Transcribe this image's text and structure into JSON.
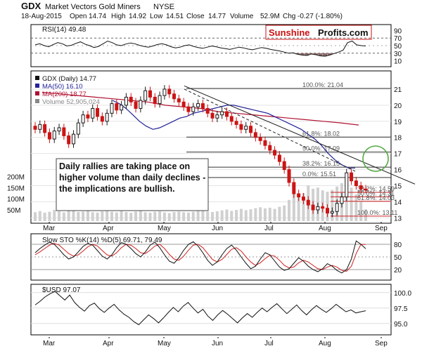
{
  "header": {
    "symbol": "GDX",
    "name": "Market Vectors Gold Miners",
    "exchange": "NYSE",
    "date": "18-Aug-2015",
    "open_label": "Open",
    "open": "14.74",
    "high_label": "High",
    "high": "14.92",
    "low_label": "Low",
    "low": "14.51",
    "close_label": "Close",
    "close": "14.77",
    "volume_label": "Volume",
    "volume": "52.9M",
    "chg_label": "Chg",
    "chg": "-0.27 (-1.80%)"
  },
  "brand": {
    "part1": "Sunshine",
    "part2": "Profits.com"
  },
  "colors": {
    "up": "#1a1a1a",
    "down": "#cc1414",
    "ma50": "#22229a",
    "ma200": "#b01030",
    "volume": "#d0d0d0",
    "rsi_fill": "#8b6a6a",
    "sto_k": "#111111",
    "sto_d": "#d02020",
    "circle": "#55aa44",
    "brand_red": "#cc1010",
    "fib": "#333333",
    "resistance": "#d02020"
  },
  "chart_data": [
    {
      "panel": "rsi",
      "type": "line",
      "title": "RSI(14) 49.48",
      "y_ticks": [
        "90",
        "70",
        "50",
        "30",
        "10"
      ],
      "ylim": [
        0,
        100
      ],
      "reference_lines": [
        70,
        30
      ],
      "values": [
        52,
        55,
        50,
        47,
        53,
        58,
        55,
        49,
        51,
        56,
        60,
        54,
        50,
        45,
        48,
        55,
        62,
        58,
        52,
        50,
        54,
        57,
        55,
        51,
        48,
        46,
        49,
        53,
        55,
        52,
        47,
        44,
        46,
        50,
        52,
        48,
        45,
        43,
        46,
        49,
        47,
        44,
        42,
        40,
        43,
        46,
        44,
        41,
        39,
        42,
        45,
        43,
        40,
        38,
        36,
        33,
        30,
        31,
        27,
        25,
        24,
        28,
        26,
        23,
        22,
        25,
        29,
        33,
        38,
        58,
        62,
        52,
        50,
        49
      ]
    },
    {
      "panel": "price",
      "type": "candlestick",
      "legend": [
        "GDX (Daily) 14.77",
        "MA(50) 16.10",
        "MA(200) 18.77",
        "Volume 52,905,024"
      ],
      "y_ticks": [
        "21",
        "20",
        "19",
        "18",
        "17",
        "16",
        "15",
        "14",
        "13"
      ],
      "ylim": [
        12.8,
        22.0
      ],
      "x_labels": [
        "Mar",
        "Apr",
        "May",
        "Jun",
        "Jul",
        "Aug",
        "Sep"
      ],
      "closes": [
        18.5,
        18.8,
        18.3,
        17.9,
        18.4,
        18.6,
        18.1,
        17.6,
        18.2,
        18.9,
        19.4,
        19.2,
        19.8,
        19.3,
        19.0,
        19.5,
        20.1,
        19.7,
        20.0,
        20.5,
        20.2,
        19.8,
        20.3,
        20.9,
        20.5,
        20.1,
        20.6,
        21.0,
        20.7,
        20.4,
        20.2,
        19.9,
        19.6,
        19.9,
        20.1,
        19.8,
        19.5,
        19.2,
        19.4,
        19.6,
        19.3,
        19.0,
        18.8,
        18.5,
        18.7,
        18.3,
        18.0,
        17.8,
        17.5,
        17.2,
        16.9,
        16.5,
        16.0,
        15.2,
        14.5,
        14.3,
        14.1,
        13.8,
        13.5,
        13.7,
        13.6,
        13.3,
        13.4,
        13.9,
        14.3,
        15.8,
        15.3,
        15.0,
        14.8,
        14.77
      ],
      "ma50": [
        20.3,
        20.1,
        19.8,
        19.4,
        19.0,
        18.7,
        18.5,
        18.6,
        18.8,
        19.0,
        19.2,
        19.3,
        19.5,
        19.6,
        19.7,
        19.8,
        19.9,
        20.0,
        20.0,
        19.9,
        19.8,
        19.7,
        19.6,
        19.5,
        19.3,
        19.1,
        18.9,
        18.7,
        18.5,
        18.2,
        17.9,
        17.5,
        17.0,
        16.6,
        16.3,
        16.1,
        16.1
      ],
      "ma200": [
        20.8,
        20.7,
        20.6,
        20.5,
        20.4,
        20.3,
        20.2,
        20.0,
        19.9,
        19.8,
        19.6,
        19.5,
        19.4,
        19.3,
        19.2,
        19.1,
        19.0,
        18.9,
        18.77
      ],
      "fib_levels": [
        {
          "label": "100.0%: 21.04",
          "value": 21.04
        },
        {
          "label": "61.8%: 18.02",
          "value": 18.02
        },
        {
          "label": "50.0%: 17.09",
          "value": 17.09
        },
        {
          "label": "38.2%: 16.15",
          "value": 16.15
        },
        {
          "label": "0.0%: 15.51",
          "value": 15.51
        },
        {
          "label": "38.2%: 14.59",
          "value": 14.59
        },
        {
          "label": "50.0%: 14.31",
          "value": 14.31
        },
        {
          "label": "61.8%: 14.03",
          "value": 14.03
        },
        {
          "label": "100.0%: 13.11",
          "value": 13.11
        }
      ],
      "volume_ticks": [
        "200M",
        "150M",
        "100M",
        "50M"
      ],
      "volume_max": 220,
      "volume_millions": [
        40,
        45,
        38,
        42,
        50,
        44,
        39,
        47,
        52,
        41,
        43,
        46,
        40,
        38,
        44,
        48,
        42,
        39,
        45,
        41,
        37,
        43,
        46,
        40,
        38,
        42,
        44,
        39,
        36,
        41,
        43,
        40,
        38,
        42,
        45,
        47,
        43,
        41,
        44,
        48,
        52,
        46,
        50,
        55,
        49,
        53,
        58,
        62,
        57,
        60,
        55,
        64,
        70,
        95,
        130,
        110,
        125,
        160,
        145,
        150,
        138,
        132,
        140,
        155,
        170,
        165,
        150,
        120,
        90,
        52.9
      ],
      "annotation": "Daily rallies are taking place on higher volume than daily declines - the implications are bullish."
    },
    {
      "panel": "stochastic",
      "type": "line",
      "title": "Slow STO %K(14) %D(5) 69.71, 79.49",
      "y_ticks": [
        "80",
        "50",
        "20"
      ],
      "ylim": [
        0,
        100
      ],
      "series": [
        {
          "name": "%K",
          "values": [
            60,
            70,
            78,
            85,
            80,
            68,
            55,
            45,
            50,
            62,
            75,
            82,
            78,
            65,
            52,
            45,
            55,
            72,
            84,
            80,
            70,
            58,
            50,
            62,
            78,
            85,
            72,
            55,
            40,
            35,
            48,
            66,
            80,
            86,
            76,
            60,
            42,
            30,
            38,
            55,
            70,
            78,
            66,
            50,
            35,
            22,
            28,
            45,
            60,
            55,
            40,
            26,
            18,
            22,
            35,
            48,
            40,
            28,
            20,
            15,
            22,
            34,
            28,
            18,
            12,
            20,
            45,
            88,
            80,
            69.71
          ]
        },
        {
          "name": "%D",
          "values": [
            55,
            62,
            70,
            78,
            82,
            78,
            68,
            58,
            52,
            55,
            64,
            74,
            80,
            76,
            65,
            55,
            52,
            60,
            72,
            80,
            78,
            70,
            60,
            58,
            66,
            76,
            80,
            70,
            56,
            45,
            42,
            52,
            66,
            78,
            80,
            72,
            58,
            44,
            38,
            44,
            56,
            68,
            72,
            64,
            50,
            38,
            30,
            36,
            46,
            54,
            52,
            42,
            30,
            24,
            26,
            36,
            42,
            38,
            30,
            22,
            20,
            26,
            30,
            26,
            18,
            16,
            28,
            58,
            80,
            79.49
          ]
        }
      ],
      "x_labels": [
        "Mar",
        "Apr",
        "May",
        "Jun",
        "Jul",
        "Aug",
        "Sep"
      ]
    },
    {
      "panel": "usd",
      "type": "line",
      "title": "$USD 97.07",
      "y_ticks": [
        "100.0",
        "97.5",
        "95.0"
      ],
      "ylim": [
        93.5,
        101.0
      ],
      "values": [
        98.0,
        98.6,
        99.3,
        99.8,
        100.2,
        99.5,
        98.8,
        99.6,
        98.4,
        97.6,
        97.0,
        97.9,
        98.3,
        97.4,
        96.8,
        97.5,
        98.1,
        97.2,
        96.5,
        96.0,
        95.3,
        94.8,
        95.6,
        96.4,
        95.8,
        95.1,
        95.9,
        96.8,
        97.6,
        96.9,
        97.8,
        98.4,
        97.5,
        96.7,
        97.3,
        96.2,
        95.5,
        96.4,
        97.1,
        96.5,
        95.8,
        95.1,
        95.9,
        96.6,
        96.0,
        96.8,
        97.5,
        96.9,
        97.6,
        98.2,
        97.4,
        96.6,
        97.3,
        98.0,
        97.1,
        96.4,
        97.2,
        97.9,
        97.3,
        96.8,
        97.4,
        98.1,
        97.5,
        96.9,
        97.2,
        96.7,
        96.9,
        97.07
      ]
    }
  ]
}
